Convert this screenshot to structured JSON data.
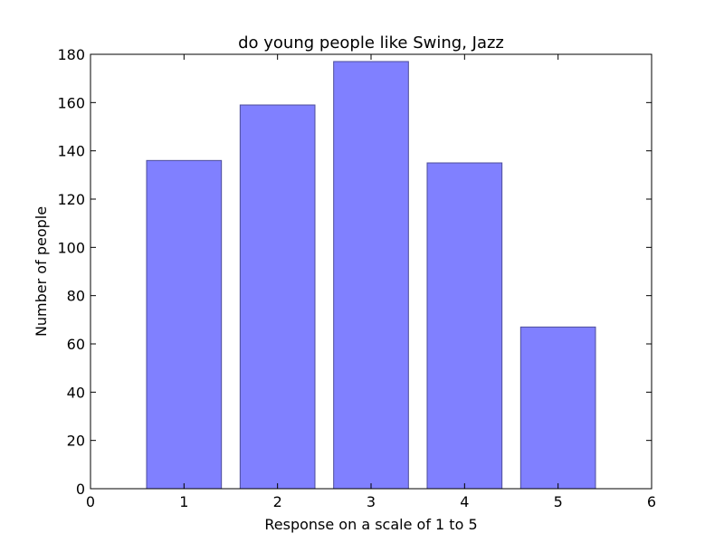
{
  "chart_data": {
    "type": "bar",
    "title": "do young people like Swing, Jazz",
    "xlabel": "Response on a scale of 1 to 5",
    "ylabel": "Number of people",
    "categories": [
      "1",
      "2",
      "3",
      "4",
      "5"
    ],
    "x": [
      1,
      2,
      3,
      4,
      5
    ],
    "values": [
      136,
      159,
      177,
      135,
      67
    ],
    "xlim": [
      0,
      6
    ],
    "ylim": [
      0,
      180
    ],
    "xticks": [
      "0",
      "1",
      "2",
      "3",
      "4",
      "5",
      "6"
    ],
    "yticks": [
      "0",
      "20",
      "40",
      "60",
      "80",
      "100",
      "120",
      "140",
      "160",
      "180"
    ],
    "grid": false,
    "colors": {
      "bar_fill": "#8080ff",
      "bar_edge": "#4d4d99",
      "axes": "#000000"
    }
  }
}
